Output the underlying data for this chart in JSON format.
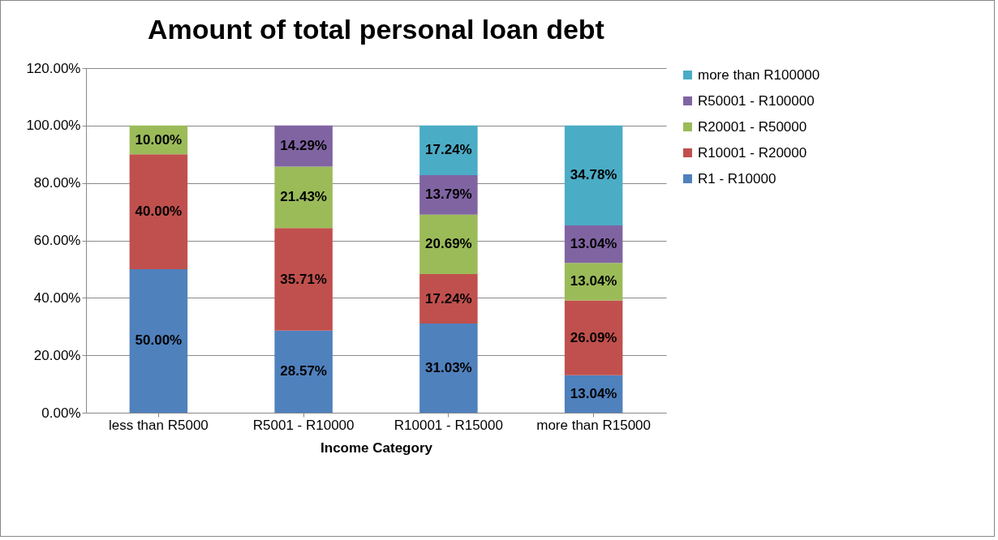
{
  "chart_data": {
    "type": "bar",
    "stacked": true,
    "title": "Amount of total personal loan debt",
    "xlabel": "Income Category",
    "categories": [
      "less than R5000",
      "R5001 - R10000",
      "R10001 - R15000",
      "more than R15000"
    ],
    "ylim": [
      0,
      120
    ],
    "yticks": [
      {
        "value": 0,
        "label": "0.00%"
      },
      {
        "value": 20,
        "label": "20.00%"
      },
      {
        "value": 40,
        "label": "40.00%"
      },
      {
        "value": 60,
        "label": "60.00%"
      },
      {
        "value": 80,
        "label": "80.00%"
      },
      {
        "value": 100,
        "label": "100.00%"
      },
      {
        "value": 120,
        "label": "120.00%"
      }
    ],
    "grid": "y",
    "legend": "right",
    "series": [
      {
        "name": "R1 - R10000",
        "color": "#4f81bd",
        "values": [
          50,
          28.57,
          31.03,
          13.04
        ],
        "value_labels": [
          "50.00%",
          "28.57%",
          "31.03%",
          "13.04%"
        ]
      },
      {
        "name": "R10001 - R20000",
        "color": "#c0504d",
        "values": [
          40,
          35.71,
          17.24,
          26.09
        ],
        "value_labels": [
          "40.00%",
          "35.71%",
          "17.24%",
          "26.09%"
        ]
      },
      {
        "name": "R20001 - R50000",
        "color": "#9bbb59",
        "values": [
          10,
          21.43,
          20.69,
          13.04
        ],
        "value_labels": [
          "10.00%",
          "21.43%",
          "20.69%",
          "13.04%"
        ]
      },
      {
        "name": "R50001 - R100000",
        "color": "#8064a2",
        "values": [
          null,
          14.29,
          13.79,
          13.04
        ],
        "value_labels": [
          null,
          "14.29%",
          "13.79%",
          "13.04%"
        ]
      },
      {
        "name": "more than R100000",
        "color": "#4bacc6",
        "values": [
          null,
          null,
          17.24,
          34.78
        ],
        "value_labels": [
          null,
          null,
          "17.24%",
          "34.78%"
        ]
      }
    ]
  }
}
